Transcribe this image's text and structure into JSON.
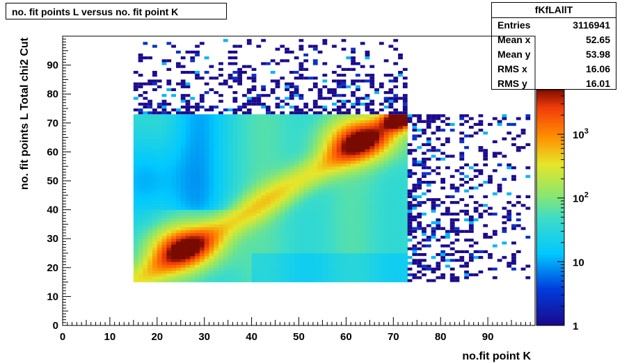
{
  "title": "no. fit points L versus no. fit point K",
  "stats": {
    "name": "fKfLAllT",
    "rows": [
      {
        "label": "Entries",
        "value": "3116941"
      },
      {
        "label": "Mean x",
        "value": "52.65"
      },
      {
        "label": "Mean y",
        "value": "53.98"
      },
      {
        "label": "RMS x",
        "value": "16.06"
      },
      {
        "label": "RMS y",
        "value": "16.01"
      }
    ]
  },
  "chart_data": {
    "type": "heatmap",
    "title": "no. fit points L versus no. fit point K",
    "xlabel": "no.fit point K",
    "ylabel": "no. fit points  L   Total chi2 Cut",
    "xlim": [
      0,
      100
    ],
    "ylim": [
      0,
      100
    ],
    "x_ticks": [
      "0",
      "10",
      "20",
      "30",
      "40",
      "50",
      "60",
      "70",
      "80",
      "90"
    ],
    "y_ticks": [
      "0",
      "10",
      "20",
      "30",
      "40",
      "50",
      "60",
      "70",
      "80",
      "90"
    ],
    "colorbar": {
      "scale": "log",
      "range": [
        1,
        5000
      ],
      "ticks": [
        "1",
        "10",
        "10^2",
        "10^3"
      ]
    },
    "dense_region": {
      "x": [
        15,
        73
      ],
      "y": [
        15,
        73
      ]
    },
    "peaks": [
      {
        "x": 26,
        "y": 27,
        "level": "high"
      },
      {
        "x": 63,
        "y": 64,
        "level": "high"
      },
      {
        "x": 71,
        "y": 71,
        "level": "max"
      }
    ],
    "sparse_regions": [
      {
        "x": [
          15,
          73
        ],
        "y": [
          73,
          99
        ]
      },
      {
        "x": [
          73,
          99
        ],
        "y": [
          15,
          73
        ]
      }
    ],
    "colors": {
      "low": "#1a0a8c",
      "mid_low": "#00c8ff",
      "mid": "#90ee90",
      "mid_high": "#ffd700",
      "high": "#ff4500",
      "max": "#8b0000"
    }
  }
}
